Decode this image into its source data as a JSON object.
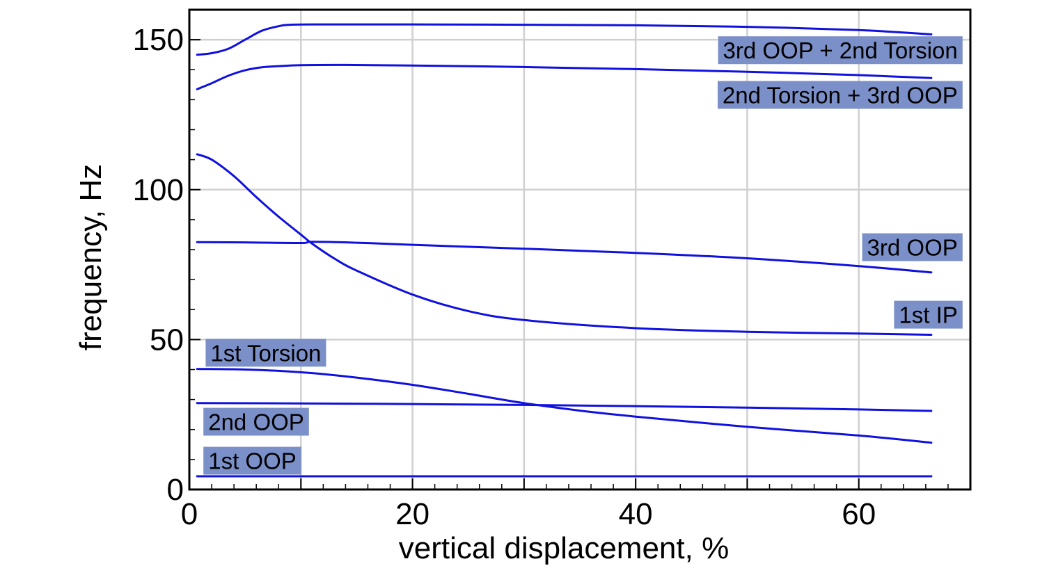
{
  "chart_data": {
    "type": "line",
    "title": "",
    "xlabel": "vertical displacement, %",
    "ylabel": "frequency, Hz",
    "xlim": [
      0,
      70
    ],
    "ylim": [
      0,
      160
    ],
    "xticks": [
      0,
      20,
      40,
      60
    ],
    "yticks": [
      0,
      50,
      100,
      150
    ],
    "x_minor_step": 2,
    "y_minor_step": 10,
    "grid": true,
    "line_color": "#1010e0",
    "label_bg_color": "#7b8fc8",
    "grid_color": "#d0d0d0",
    "series": [
      {
        "name": "3rd OOP + 2nd Torsion",
        "x": [
          0.7,
          2,
          3.5,
          5,
          6.5,
          8,
          9,
          12,
          20,
          30,
          40,
          50,
          60,
          66.5
        ],
        "y": [
          145,
          145.5,
          147,
          150,
          153,
          154.5,
          155,
          155.1,
          155.1,
          155,
          154.8,
          154.3,
          153.2,
          151.8
        ]
      },
      {
        "name": "2nd Torsion + 3rd OOP",
        "x": [
          0.7,
          2,
          3.5,
          5,
          6.5,
          8,
          10,
          14,
          20,
          30,
          40,
          50,
          60,
          66.5
        ],
        "y": [
          133.5,
          135.5,
          138,
          139.8,
          140.8,
          141.2,
          141.5,
          141.6,
          141.4,
          140.9,
          140.2,
          139.3,
          138.2,
          137.2
        ]
      },
      {
        "name": "3rd OOP",
        "x": [
          0.7,
          5,
          10,
          11,
          15,
          20,
          30,
          40,
          50,
          60,
          66.5
        ],
        "y": [
          82.5,
          82.4,
          82.2,
          82.6,
          82.3,
          81.6,
          80.3,
          78.9,
          77.1,
          74.5,
          72.4
        ]
      },
      {
        "name": "1st IP",
        "x": [
          0.7,
          2,
          4,
          6,
          8,
          10,
          11,
          13,
          15,
          20,
          25,
          30,
          40,
          50,
          60,
          66.5
        ],
        "y": [
          111.8,
          110,
          104.5,
          97.5,
          91,
          85,
          82,
          77,
          73,
          65,
          59.5,
          56.5,
          53.8,
          52.6,
          52,
          51.6
        ]
      },
      {
        "name": "1st Torsion",
        "x": [
          0.7,
          5,
          10,
          15,
          20,
          25,
          30,
          35,
          40,
          50,
          60,
          66.5
        ],
        "y": [
          40.2,
          40,
          39.1,
          37.3,
          34.9,
          31.9,
          28.8,
          26.3,
          24.3,
          20.9,
          18,
          15.6
        ]
      },
      {
        "name": "2nd OOP",
        "x": [
          0.7,
          10,
          20,
          30,
          40,
          50,
          60,
          66.5
        ],
        "y": [
          28.8,
          28.7,
          28.5,
          28.2,
          27.8,
          27.3,
          26.7,
          26.2
        ]
      },
      {
        "name": "1st OOP",
        "x": [
          0.7,
          20,
          40,
          60,
          66.5
        ],
        "y": [
          4.4,
          4.4,
          4.4,
          4.4,
          4.4
        ]
      }
    ],
    "labels": [
      {
        "text": "3rd OOP + 2nd Torsion",
        "series": 0,
        "anchor": "end",
        "x": 69.3,
        "y": 146.5
      },
      {
        "text": "2nd Torsion + 3rd OOP",
        "series": 1,
        "anchor": "end",
        "x": 69.3,
        "y": 131.6
      },
      {
        "text": "3rd OOP",
        "series": 2,
        "anchor": "end",
        "x": 69.3,
        "y": 80.8
      },
      {
        "text": "1st IP",
        "series": 3,
        "anchor": "end",
        "x": 69.3,
        "y": 58.3
      },
      {
        "text": "1st Torsion",
        "series": 4,
        "anchor": "start",
        "x": 1.4,
        "y": 45.6
      },
      {
        "text": "2nd OOP",
        "series": 5,
        "anchor": "start",
        "x": 1.2,
        "y": 22.6
      },
      {
        "text": "1st OOP",
        "series": 6,
        "anchor": "start",
        "x": 1.2,
        "y": 9.6
      }
    ]
  }
}
